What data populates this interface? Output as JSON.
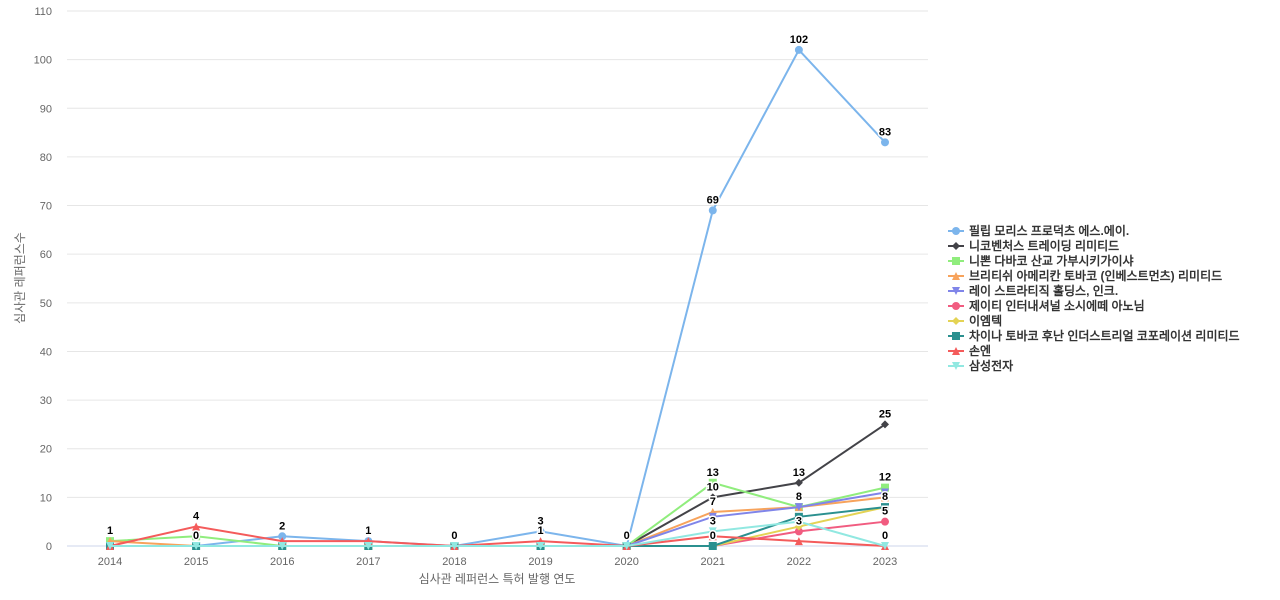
{
  "chart_data": {
    "type": "line",
    "xlabel": "심사관 레퍼런스 특허 발행 연도",
    "ylabel": "심사관 레퍼런스수",
    "ylim": [
      0,
      110
    ],
    "yticks": [
      0,
      10,
      20,
      30,
      40,
      50,
      60,
      70,
      80,
      90,
      100,
      110
    ],
    "categories": [
      "2014",
      "2015",
      "2016",
      "2017",
      "2018",
      "2019",
      "2020",
      "2021",
      "2022",
      "2023"
    ],
    "grid": true,
    "legend_position": "right",
    "series": [
      {
        "name": "필립 모리스 프로덕츠 에스.에이.",
        "color": "#7cb5ec",
        "marker": "circle",
        "values": [
          0,
          0,
          2,
          1,
          0,
          3,
          0,
          69,
          102,
          83
        ]
      },
      {
        "name": "니코벤처스 트레이딩 리미티드",
        "color": "#434348",
        "marker": "diamond",
        "values": [
          0,
          0,
          0,
          0,
          0,
          0,
          0,
          10,
          13,
          25
        ]
      },
      {
        "name": "니뽄 다바코 산교 가부시키가이샤",
        "color": "#90ed7d",
        "marker": "square",
        "values": [
          1,
          2,
          0,
          0,
          0,
          0,
          0,
          13,
          8,
          12
        ]
      },
      {
        "name": "브리티쉬 아메리칸 토바코 (인베스트먼츠) 리미티드",
        "color": "#f7a35c",
        "marker": "triangle",
        "values": [
          1,
          0,
          0,
          0,
          0,
          0,
          0,
          7,
          8,
          10
        ]
      },
      {
        "name": "레이 스트라티직 홀딩스, 인크.",
        "color": "#8085e9",
        "marker": "triangle-down",
        "values": [
          0,
          0,
          0,
          0,
          0,
          0,
          0,
          6,
          8,
          11
        ]
      },
      {
        "name": "제이티 인터내셔널 소시에떼 아노님",
        "color": "#f15c80",
        "marker": "circle",
        "values": [
          0,
          0,
          0,
          0,
          0,
          0,
          0,
          0,
          3,
          5
        ]
      },
      {
        "name": "이엠텍",
        "color": "#e4d354",
        "marker": "diamond",
        "values": [
          0,
          0,
          0,
          0,
          0,
          0,
          0,
          0,
          4,
          8
        ]
      },
      {
        "name": "차이나 토바코 후난 인더스트리얼 코포레이션 리미티드",
        "color": "#2b908f",
        "marker": "square",
        "values": [
          0,
          0,
          0,
          0,
          0,
          0,
          0,
          0,
          6,
          8
        ]
      },
      {
        "name": "손엔",
        "color": "#f45b5b",
        "marker": "triangle",
        "values": [
          0,
          4,
          1,
          1,
          0,
          1,
          0,
          2,
          1,
          0
        ]
      },
      {
        "name": "삼성전자",
        "color": "#91e8e1",
        "marker": "triangle-down",
        "values": [
          0,
          0,
          0,
          0,
          0,
          0,
          0,
          3,
          5,
          0
        ]
      }
    ],
    "visible_labels": [
      [
        2,
        0
      ],
      [
        8,
        1
      ],
      [
        0,
        1
      ],
      [
        0,
        2
      ],
      [
        8,
        3
      ],
      [
        0,
        4
      ],
      [
        0,
        5
      ],
      [
        8,
        5
      ],
      [
        0,
        6
      ],
      [
        0,
        7
      ],
      [
        2,
        7
      ],
      [
        1,
        7
      ],
      [
        3,
        7
      ],
      [
        9,
        7
      ],
      [
        5,
        7
      ],
      [
        0,
        8
      ],
      [
        1,
        8
      ],
      [
        3,
        8
      ],
      [
        5,
        8
      ],
      [
        0,
        9
      ],
      [
        1,
        9
      ],
      [
        2,
        9
      ],
      [
        7,
        9
      ],
      [
        5,
        9
      ],
      [
        9,
        9
      ]
    ]
  }
}
